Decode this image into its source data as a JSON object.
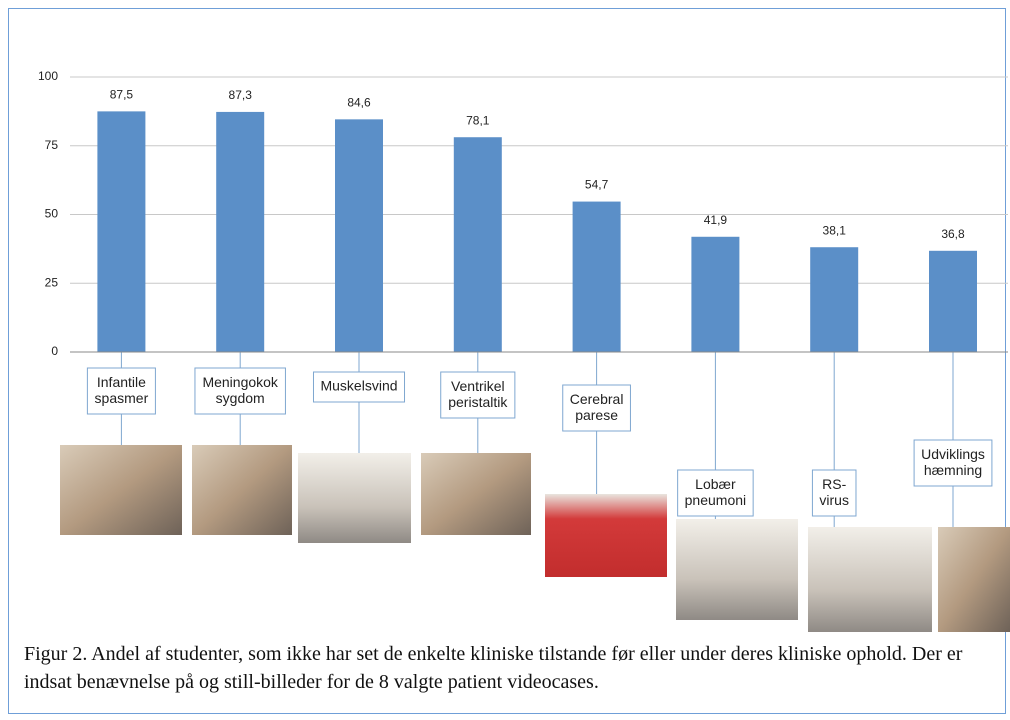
{
  "chart_data": {
    "type": "bar",
    "categories": [
      "Infantile\nspasmer",
      "Meningokok\nsygdom",
      "Muskelsvind",
      "Ventrikel\nperistaltik",
      "Cerebral\nparese",
      "Lobær\npneumoni",
      "RS-\nvirus",
      "Udviklings\nhæmning"
    ],
    "values": [
      87.5,
      87.3,
      84.6,
      78.1,
      54.7,
      41.9,
      38.1,
      36.8
    ],
    "value_labels": [
      "87,5",
      "87,3",
      "84,6",
      "78,1",
      "54,7",
      "41,9",
      "38,1",
      "36,8"
    ],
    "color": "#5b8fc8",
    "ylim": [
      0,
      100
    ],
    "yticks": [
      0,
      25,
      50,
      75,
      100
    ],
    "grid": true,
    "caption": "Figur 2. Andel af studenter, som ikke har set de enkelte kliniske tilstande før eller under deres kliniske ophold. Der er indsat benævnelse på og still-billeder for de 8 valgte patient videocases."
  }
}
